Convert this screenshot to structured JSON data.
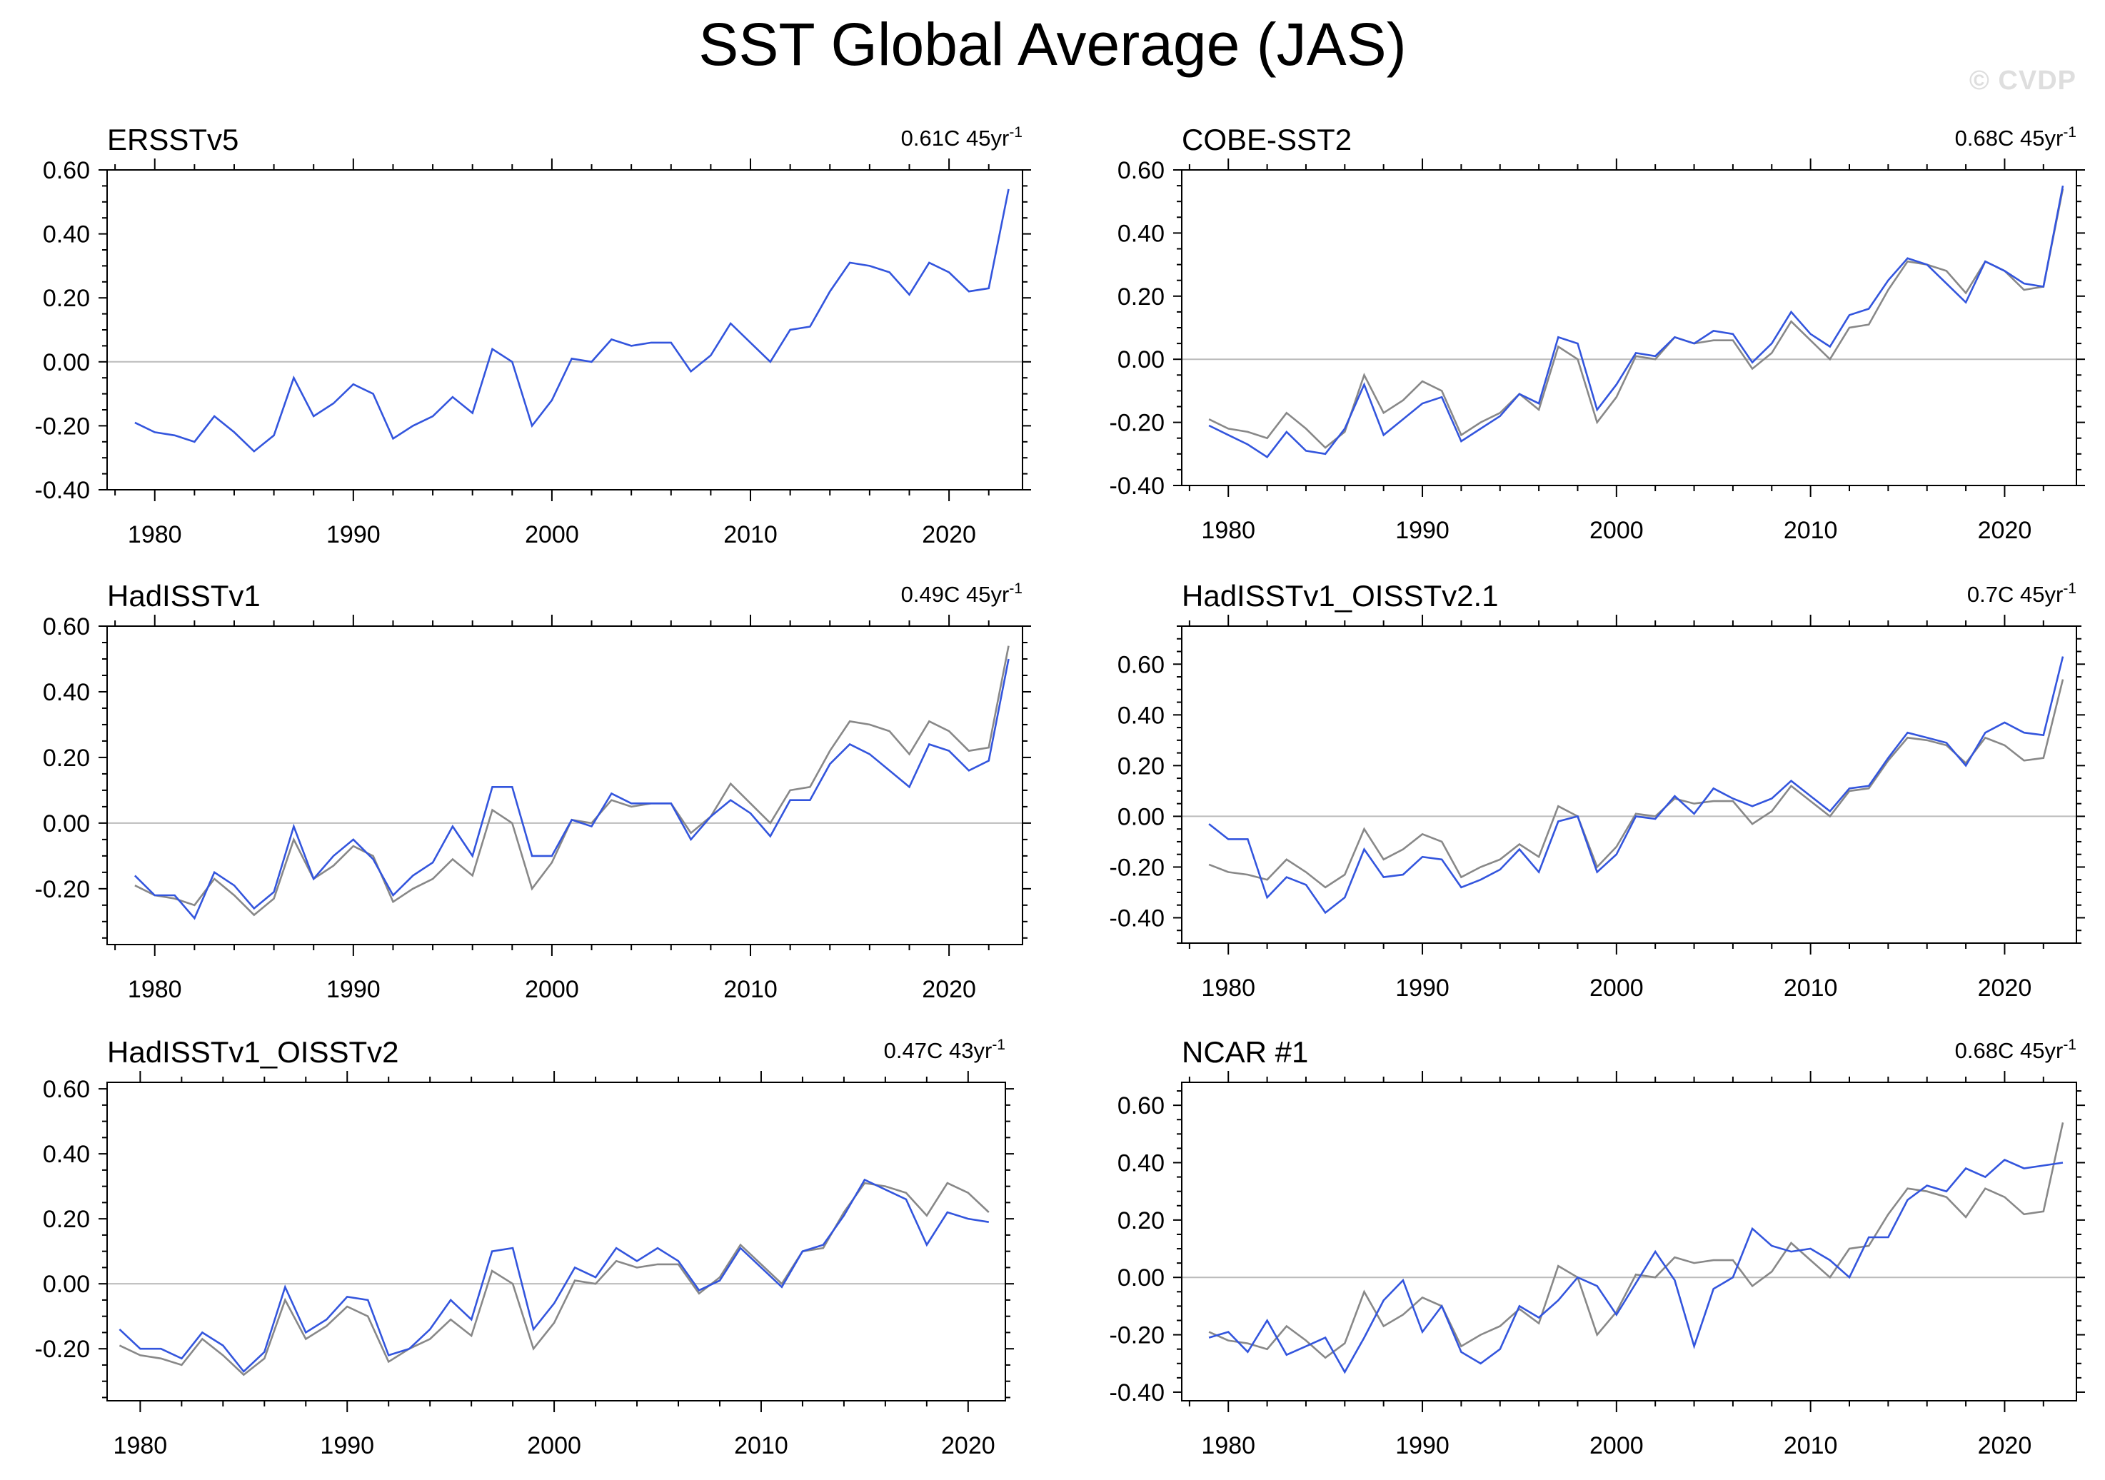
{
  "title": "SST Global Average (JAS)",
  "watermark": "© CVDP",
  "colors": {
    "reference": "#888888",
    "dataset": "#3355dd",
    "zero_line": "#bbbbbb",
    "axis": "#000000"
  },
  "chart_data": [
    {
      "type": "line",
      "title": "ERSSTv5",
      "trend_label": "0.61C 45yr",
      "trend_sup": "-1",
      "x_ticks": [
        1980,
        1990,
        2000,
        2010,
        2020
      ],
      "y_ticks": [
        "0.60",
        "0.40",
        "0.20",
        "0.00",
        "-0.20",
        "-0.40"
      ],
      "xlim": [
        1977.6,
        2023.7
      ],
      "ylim": [
        -0.4,
        0.6
      ],
      "grid": false,
      "series": [
        {
          "name": "ERSSTv5",
          "role": "dataset",
          "start_year": 1979,
          "values": [
            -0.19,
            -0.22,
            -0.23,
            -0.25,
            -0.17,
            -0.22,
            -0.28,
            -0.23,
            -0.05,
            -0.17,
            -0.13,
            -0.07,
            -0.1,
            -0.24,
            -0.2,
            -0.17,
            -0.11,
            -0.16,
            0.04,
            0.0,
            -0.2,
            -0.12,
            0.01,
            0.0,
            0.07,
            0.05,
            0.06,
            0.06,
            -0.03,
            0.02,
            0.12,
            0.06,
            0.0,
            0.1,
            0.11,
            0.22,
            0.31,
            0.3,
            0.28,
            0.21,
            0.31,
            0.28,
            0.22,
            0.23,
            0.54
          ]
        }
      ]
    },
    {
      "type": "line",
      "title": "COBE-SST2",
      "trend_label": "0.68C 45yr",
      "trend_sup": "-1",
      "x_ticks": [
        1980,
        1990,
        2000,
        2010,
        2020
      ],
      "y_ticks": [
        "0.60",
        "0.40",
        "0.20",
        "0.00",
        "-0.20",
        "-0.40"
      ],
      "xlim": [
        1977.6,
        2023.7
      ],
      "ylim": [
        -0.4,
        0.6
      ],
      "grid": false,
      "series": [
        {
          "name": "ERSSTv5 (reference)",
          "role": "reference",
          "start_year": 1979,
          "values": [
            -0.19,
            -0.22,
            -0.23,
            -0.25,
            -0.17,
            -0.22,
            -0.28,
            -0.23,
            -0.05,
            -0.17,
            -0.13,
            -0.07,
            -0.1,
            -0.24,
            -0.2,
            -0.17,
            -0.11,
            -0.16,
            0.04,
            0.0,
            -0.2,
            -0.12,
            0.01,
            0.0,
            0.07,
            0.05,
            0.06,
            0.06,
            -0.03,
            0.02,
            0.12,
            0.06,
            0.0,
            0.1,
            0.11,
            0.22,
            0.31,
            0.3,
            0.28,
            0.21,
            0.31,
            0.28,
            0.22,
            0.23,
            0.54
          ]
        },
        {
          "name": "COBE-SST2",
          "role": "dataset",
          "start_year": 1979,
          "values": [
            -0.21,
            -0.24,
            -0.27,
            -0.31,
            -0.23,
            -0.29,
            -0.3,
            -0.22,
            -0.08,
            -0.24,
            -0.19,
            -0.14,
            -0.12,
            -0.26,
            -0.22,
            -0.18,
            -0.11,
            -0.14,
            0.07,
            0.05,
            -0.16,
            -0.08,
            0.02,
            0.01,
            0.07,
            0.05,
            0.09,
            0.08,
            -0.01,
            0.05,
            0.15,
            0.08,
            0.04,
            0.14,
            0.16,
            0.25,
            0.32,
            0.3,
            0.24,
            0.18,
            0.31,
            0.28,
            0.24,
            0.23,
            0.55
          ]
        }
      ]
    },
    {
      "type": "line",
      "title": "HadISSTv1",
      "trend_label": "0.49C 45yr",
      "trend_sup": "-1",
      "x_ticks": [
        1980,
        1990,
        2000,
        2010,
        2020
      ],
      "y_ticks": [
        "0.60",
        "0.40",
        "0.20",
        "0.00",
        "-0.20"
      ],
      "xlim": [
        1977.6,
        2023.7
      ],
      "ylim": [
        -0.37,
        0.6
      ],
      "grid": false,
      "series": [
        {
          "name": "ERSSTv5 (reference)",
          "role": "reference",
          "start_year": 1979,
          "values": [
            -0.19,
            -0.22,
            -0.23,
            -0.25,
            -0.17,
            -0.22,
            -0.28,
            -0.23,
            -0.05,
            -0.17,
            -0.13,
            -0.07,
            -0.1,
            -0.24,
            -0.2,
            -0.17,
            -0.11,
            -0.16,
            0.04,
            0.0,
            -0.2,
            -0.12,
            0.01,
            0.0,
            0.07,
            0.05,
            0.06,
            0.06,
            -0.03,
            0.02,
            0.12,
            0.06,
            0.0,
            0.1,
            0.11,
            0.22,
            0.31,
            0.3,
            0.28,
            0.21,
            0.31,
            0.28,
            0.22,
            0.23,
            0.54
          ]
        },
        {
          "name": "HadISSTv1",
          "role": "dataset",
          "start_year": 1979,
          "values": [
            -0.16,
            -0.22,
            -0.22,
            -0.29,
            -0.15,
            -0.19,
            -0.26,
            -0.21,
            -0.01,
            -0.17,
            -0.1,
            -0.05,
            -0.11,
            -0.22,
            -0.16,
            -0.12,
            -0.01,
            -0.1,
            0.11,
            0.11,
            -0.1,
            -0.1,
            0.01,
            -0.01,
            0.09,
            0.06,
            0.06,
            0.06,
            -0.05,
            0.02,
            0.07,
            0.03,
            -0.04,
            0.07,
            0.07,
            0.18,
            0.24,
            0.21,
            0.16,
            0.11,
            0.24,
            0.22,
            0.16,
            0.19,
            0.5
          ]
        }
      ]
    },
    {
      "type": "line",
      "title": "HadISSTv1_OISSTv2.1",
      "trend_label": "0.7C 45yr",
      "trend_sup": "-1",
      "x_ticks": [
        1980,
        1990,
        2000,
        2010,
        2020
      ],
      "y_ticks": [
        "0.60",
        "0.40",
        "0.20",
        "0.00",
        "-0.20",
        "-0.40"
      ],
      "xlim": [
        1977.6,
        2023.7
      ],
      "ylim": [
        -0.5,
        0.75
      ],
      "grid": false,
      "series": [
        {
          "name": "ERSSTv5 (reference)",
          "role": "reference",
          "start_year": 1979,
          "values": [
            -0.19,
            -0.22,
            -0.23,
            -0.25,
            -0.17,
            -0.22,
            -0.28,
            -0.23,
            -0.05,
            -0.17,
            -0.13,
            -0.07,
            -0.1,
            -0.24,
            -0.2,
            -0.17,
            -0.11,
            -0.16,
            0.04,
            0.0,
            -0.2,
            -0.12,
            0.01,
            0.0,
            0.07,
            0.05,
            0.06,
            0.06,
            -0.03,
            0.02,
            0.12,
            0.06,
            0.0,
            0.1,
            0.11,
            0.22,
            0.31,
            0.3,
            0.28,
            0.21,
            0.31,
            0.28,
            0.22,
            0.23,
            0.54
          ]
        },
        {
          "name": "HadISSTv1_OISSTv2.1",
          "role": "dataset",
          "start_year": 1979,
          "values": [
            -0.03,
            -0.09,
            -0.09,
            -0.32,
            -0.24,
            -0.27,
            -0.38,
            -0.32,
            -0.13,
            -0.24,
            -0.23,
            -0.16,
            -0.17,
            -0.28,
            -0.25,
            -0.21,
            -0.13,
            -0.22,
            -0.02,
            0.0,
            -0.22,
            -0.15,
            0.0,
            -0.01,
            0.08,
            0.01,
            0.11,
            0.07,
            0.04,
            0.07,
            0.14,
            0.08,
            0.02,
            0.11,
            0.12,
            0.23,
            0.33,
            0.31,
            0.29,
            0.2,
            0.33,
            0.37,
            0.33,
            0.32,
            0.63
          ]
        }
      ]
    },
    {
      "type": "line",
      "title": "HadISSTv1_OISSTv2",
      "trend_label": "0.47C 43yr",
      "trend_sup": "-1",
      "x_ticks": [
        1980,
        1990,
        2000,
        2010,
        2020
      ],
      "y_ticks": [
        "0.60",
        "0.40",
        "0.20",
        "0.00",
        "-0.20"
      ],
      "xlim": [
        1978.4,
        2021.8
      ],
      "ylim": [
        -0.36,
        0.62
      ],
      "grid": false,
      "series": [
        {
          "name": "ERSSTv5 (reference)",
          "role": "reference",
          "start_year": 1979,
          "values": [
            -0.19,
            -0.22,
            -0.23,
            -0.25,
            -0.17,
            -0.22,
            -0.28,
            -0.23,
            -0.05,
            -0.17,
            -0.13,
            -0.07,
            -0.1,
            -0.24,
            -0.2,
            -0.17,
            -0.11,
            -0.16,
            0.04,
            0.0,
            -0.2,
            -0.12,
            0.01,
            0.0,
            0.07,
            0.05,
            0.06,
            0.06,
            -0.03,
            0.02,
            0.12,
            0.06,
            0.0,
            0.1,
            0.11,
            0.22,
            0.31,
            0.3,
            0.28,
            0.21,
            0.31,
            0.28,
            0.22
          ]
        },
        {
          "name": "HadISSTv1_OISSTv2",
          "role": "dataset",
          "start_year": 1979,
          "values": [
            -0.14,
            -0.2,
            -0.2,
            -0.23,
            -0.15,
            -0.19,
            -0.27,
            -0.21,
            -0.01,
            -0.15,
            -0.11,
            -0.04,
            -0.05,
            -0.22,
            -0.2,
            -0.14,
            -0.05,
            -0.11,
            0.1,
            0.11,
            -0.14,
            -0.06,
            0.05,
            0.02,
            0.11,
            0.07,
            0.11,
            0.07,
            -0.02,
            0.01,
            0.11,
            0.05,
            -0.01,
            0.1,
            0.12,
            0.21,
            0.32,
            0.29,
            0.26,
            0.12,
            0.22,
            0.2,
            0.19
          ]
        }
      ]
    },
    {
      "type": "line",
      "title": "NCAR #1",
      "trend_label": "0.68C 45yr",
      "trend_sup": "-1",
      "x_ticks": [
        1980,
        1990,
        2000,
        2010,
        2020
      ],
      "y_ticks": [
        "0.60",
        "0.40",
        "0.20",
        "0.00",
        "-0.20",
        "-0.40"
      ],
      "xlim": [
        1977.6,
        2023.7
      ],
      "ylim": [
        -0.43,
        0.68
      ],
      "grid": false,
      "series": [
        {
          "name": "ERSSTv5 (reference)",
          "role": "reference",
          "start_year": 1979,
          "values": [
            -0.19,
            -0.22,
            -0.23,
            -0.25,
            -0.17,
            -0.22,
            -0.28,
            -0.23,
            -0.05,
            -0.17,
            -0.13,
            -0.07,
            -0.1,
            -0.24,
            -0.2,
            -0.17,
            -0.11,
            -0.16,
            0.04,
            0.0,
            -0.2,
            -0.12,
            0.01,
            0.0,
            0.07,
            0.05,
            0.06,
            0.06,
            -0.03,
            0.02,
            0.12,
            0.06,
            0.0,
            0.1,
            0.11,
            0.22,
            0.31,
            0.3,
            0.28,
            0.21,
            0.31,
            0.28,
            0.22,
            0.23,
            0.54
          ]
        },
        {
          "name": "NCAR #1",
          "role": "dataset",
          "start_year": 1979,
          "values": [
            -0.21,
            -0.19,
            -0.26,
            -0.15,
            -0.27,
            -0.24,
            -0.21,
            -0.33,
            -0.21,
            -0.08,
            -0.01,
            -0.19,
            -0.1,
            -0.26,
            -0.3,
            -0.25,
            -0.1,
            -0.14,
            -0.08,
            0.0,
            -0.03,
            -0.13,
            -0.02,
            0.09,
            -0.01,
            -0.24,
            -0.04,
            0.0,
            0.17,
            0.11,
            0.09,
            0.1,
            0.06,
            0.0,
            0.14,
            0.14,
            0.27,
            0.32,
            0.3,
            0.38,
            0.35,
            0.41,
            0.38,
            0.39,
            0.4
          ]
        }
      ]
    }
  ]
}
